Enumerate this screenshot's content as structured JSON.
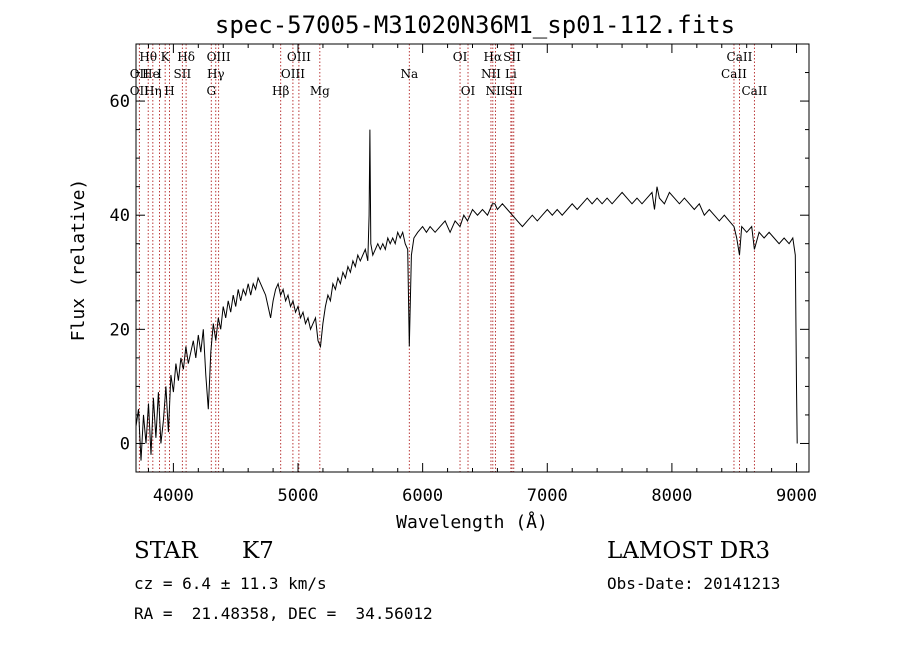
{
  "chart_data": {
    "type": "line",
    "title": "spec-57005-M31020N36M1_sp01-112.fits",
    "xlabel": "Wavelength (Å)",
    "ylabel": "Flux (relative)",
    "xlim": [
      3700,
      9100
    ],
    "ylim": [
      -5,
      70
    ],
    "x_ticks": [
      4000,
      5000,
      6000,
      7000,
      8000,
      9000
    ],
    "y_ticks": [
      0,
      20,
      40,
      60
    ],
    "grid": false,
    "series": [
      {
        "name": "spectrum",
        "points": [
          [
            3700,
            3
          ],
          [
            3720,
            6
          ],
          [
            3740,
            -3
          ],
          [
            3760,
            5
          ],
          [
            3780,
            0
          ],
          [
            3800,
            7
          ],
          [
            3820,
            -2
          ],
          [
            3840,
            8
          ],
          [
            3860,
            1
          ],
          [
            3880,
            9
          ],
          [
            3900,
            0
          ],
          [
            3920,
            4
          ],
          [
            3940,
            10
          ],
          [
            3960,
            2
          ],
          [
            3980,
            12
          ],
          [
            4000,
            9
          ],
          [
            4020,
            14
          ],
          [
            4040,
            11
          ],
          [
            4060,
            15
          ],
          [
            4080,
            13
          ],
          [
            4100,
            17
          ],
          [
            4120,
            14
          ],
          [
            4140,
            16
          ],
          [
            4160,
            18
          ],
          [
            4180,
            15
          ],
          [
            4200,
            19
          ],
          [
            4220,
            16
          ],
          [
            4240,
            20
          ],
          [
            4260,
            12
          ],
          [
            4280,
            6
          ],
          [
            4300,
            16
          ],
          [
            4320,
            21
          ],
          [
            4340,
            18
          ],
          [
            4360,
            22
          ],
          [
            4380,
            20
          ],
          [
            4400,
            24
          ],
          [
            4420,
            22
          ],
          [
            4440,
            25
          ],
          [
            4460,
            23
          ],
          [
            4480,
            26
          ],
          [
            4500,
            24
          ],
          [
            4520,
            27
          ],
          [
            4540,
            25
          ],
          [
            4560,
            27
          ],
          [
            4580,
            26
          ],
          [
            4600,
            28
          ],
          [
            4620,
            26
          ],
          [
            4640,
            28
          ],
          [
            4660,
            27
          ],
          [
            4680,
            29
          ],
          [
            4700,
            28
          ],
          [
            4720,
            27
          ],
          [
            4740,
            26
          ],
          [
            4760,
            24
          ],
          [
            4780,
            22
          ],
          [
            4800,
            25
          ],
          [
            4820,
            27
          ],
          [
            4840,
            28
          ],
          [
            4860,
            26
          ],
          [
            4880,
            27
          ],
          [
            4900,
            25
          ],
          [
            4920,
            26
          ],
          [
            4940,
            24
          ],
          [
            4960,
            25
          ],
          [
            4980,
            23
          ],
          [
            5000,
            24
          ],
          [
            5020,
            22
          ],
          [
            5040,
            23
          ],
          [
            5060,
            21
          ],
          [
            5080,
            22
          ],
          [
            5100,
            20
          ],
          [
            5120,
            21
          ],
          [
            5140,
            22
          ],
          [
            5160,
            18
          ],
          [
            5180,
            17
          ],
          [
            5200,
            21
          ],
          [
            5220,
            24
          ],
          [
            5240,
            26
          ],
          [
            5260,
            25
          ],
          [
            5280,
            28
          ],
          [
            5300,
            27
          ],
          [
            5320,
            29
          ],
          [
            5340,
            28
          ],
          [
            5360,
            30
          ],
          [
            5380,
            29
          ],
          [
            5400,
            31
          ],
          [
            5420,
            30
          ],
          [
            5440,
            32
          ],
          [
            5460,
            31
          ],
          [
            5480,
            33
          ],
          [
            5500,
            32
          ],
          [
            5520,
            33
          ],
          [
            5540,
            34
          ],
          [
            5560,
            32
          ],
          [
            5570,
            40
          ],
          [
            5577,
            55
          ],
          [
            5584,
            35
          ],
          [
            5600,
            33
          ],
          [
            5620,
            34
          ],
          [
            5640,
            35
          ],
          [
            5660,
            34
          ],
          [
            5680,
            35
          ],
          [
            5700,
            34
          ],
          [
            5720,
            36
          ],
          [
            5740,
            35
          ],
          [
            5760,
            36
          ],
          [
            5780,
            35
          ],
          [
            5800,
            37
          ],
          [
            5820,
            36
          ],
          [
            5840,
            37
          ],
          [
            5860,
            35
          ],
          [
            5880,
            34
          ],
          [
            5893,
            17
          ],
          [
            5910,
            33
          ],
          [
            5930,
            36
          ],
          [
            5960,
            37
          ],
          [
            6000,
            38
          ],
          [
            6030,
            37
          ],
          [
            6060,
            38
          ],
          [
            6100,
            37
          ],
          [
            6140,
            38
          ],
          [
            6180,
            39
          ],
          [
            6220,
            37
          ],
          [
            6260,
            39
          ],
          [
            6300,
            38
          ],
          [
            6330,
            40
          ],
          [
            6360,
            39
          ],
          [
            6400,
            41
          ],
          [
            6440,
            40
          ],
          [
            6480,
            41
          ],
          [
            6520,
            40
          ],
          [
            6560,
            42
          ],
          [
            6580,
            42
          ],
          [
            6600,
            41
          ],
          [
            6640,
            42
          ],
          [
            6680,
            41
          ],
          [
            6720,
            40
          ],
          [
            6760,
            39
          ],
          [
            6800,
            38
          ],
          [
            6840,
            39
          ],
          [
            6880,
            40
          ],
          [
            6920,
            39
          ],
          [
            6960,
            40
          ],
          [
            7000,
            41
          ],
          [
            7040,
            40
          ],
          [
            7080,
            41
          ],
          [
            7120,
            40
          ],
          [
            7160,
            41
          ],
          [
            7200,
            42
          ],
          [
            7240,
            41
          ],
          [
            7280,
            42
          ],
          [
            7320,
            43
          ],
          [
            7360,
            42
          ],
          [
            7400,
            43
          ],
          [
            7440,
            42
          ],
          [
            7480,
            43
          ],
          [
            7520,
            42
          ],
          [
            7560,
            43
          ],
          [
            7600,
            44
          ],
          [
            7640,
            43
          ],
          [
            7680,
            42
          ],
          [
            7720,
            43
          ],
          [
            7760,
            42
          ],
          [
            7800,
            43
          ],
          [
            7840,
            44
          ],
          [
            7860,
            41
          ],
          [
            7880,
            45
          ],
          [
            7900,
            43
          ],
          [
            7940,
            42
          ],
          [
            7980,
            44
          ],
          [
            8020,
            43
          ],
          [
            8060,
            42
          ],
          [
            8100,
            43
          ],
          [
            8140,
            42
          ],
          [
            8180,
            41
          ],
          [
            8220,
            42
          ],
          [
            8260,
            40
          ],
          [
            8300,
            41
          ],
          [
            8340,
            40
          ],
          [
            8380,
            39
          ],
          [
            8420,
            40
          ],
          [
            8460,
            39
          ],
          [
            8498,
            38
          ],
          [
            8520,
            36
          ],
          [
            8542,
            33
          ],
          [
            8560,
            38
          ],
          [
            8600,
            37
          ],
          [
            8640,
            38
          ],
          [
            8662,
            34
          ],
          [
            8700,
            37
          ],
          [
            8740,
            36
          ],
          [
            8780,
            37
          ],
          [
            8820,
            36
          ],
          [
            8860,
            35
          ],
          [
            8900,
            36
          ],
          [
            8940,
            35
          ],
          [
            8970,
            36
          ],
          [
            8990,
            33
          ],
          [
            9000,
            10
          ],
          [
            9005,
            0
          ]
        ]
      }
    ],
    "line_annotations": [
      {
        "label": "Hθ",
        "x": 3798,
        "row": 1
      },
      {
        "label": "OII",
        "x": 3727,
        "row": 2
      },
      {
        "label": "OII",
        "x": 3727,
        "row": 3
      },
      {
        "label": "He",
        "x": 3820,
        "row": 2
      },
      {
        "label": "Hη",
        "x": 3835,
        "row": 3
      },
      {
        "label": "K",
        "x": 3934,
        "row": 1
      },
      {
        "label": "SII",
        "x": 4072,
        "row": 2
      },
      {
        "label": "H",
        "x": 3969,
        "row": 3
      },
      {
        "label": "Hδ",
        "x": 4102,
        "row": 1
      },
      {
        "label": "I",
        "x": 3889,
        "row": 2
      },
      {
        "label": "OIII",
        "x": 4363,
        "row": 1
      },
      {
        "label": "Hγ",
        "x": 4340,
        "row": 2
      },
      {
        "label": "G",
        "x": 4304,
        "row": 3
      },
      {
        "label": "OIII",
        "x": 5007,
        "row": 1
      },
      {
        "label": "OIII",
        "x": 4959,
        "row": 2
      },
      {
        "label": "Hβ",
        "x": 4861,
        "row": 3
      },
      {
        "label": "Mg",
        "x": 5175,
        "row": 3
      },
      {
        "label": "Na",
        "x": 5893,
        "row": 2
      },
      {
        "label": "OI",
        "x": 6300,
        "row": 1
      },
      {
        "label": "OI",
        "x": 6364,
        "row": 3
      },
      {
        "label": "Hα",
        "x": 6563,
        "row": 1
      },
      {
        "label": "NII",
        "x": 6548,
        "row": 2
      },
      {
        "label": "NII",
        "x": 6584,
        "row": 3
      },
      {
        "label": "SII",
        "x": 6717,
        "row": 1
      },
      {
        "label": "Li",
        "x": 6708,
        "row": 2
      },
      {
        "label": "SII",
        "x": 6731,
        "row": 3
      },
      {
        "label": "CaII",
        "x": 8542,
        "row": 1
      },
      {
        "label": "CaII",
        "x": 8498,
        "row": 2
      },
      {
        "label": "CaII",
        "x": 8662,
        "row": 3
      }
    ],
    "marker_lines": [
      3727,
      3798,
      3835,
      3889,
      3934,
      3969,
      4072,
      4102,
      4304,
      4340,
      4363,
      4861,
      4959,
      5007,
      5175,
      5893,
      6300,
      6364,
      6548,
      6563,
      6584,
      6708,
      6717,
      6731,
      8498,
      8542,
      8662
    ]
  },
  "info": {
    "object_class": "STAR",
    "subclass": "K7",
    "survey": "LAMOST DR3",
    "cz": "cz = 6.4 ± 11.3 km/s",
    "obs_date": "Obs-Date: 20141213",
    "coords": "RA =  21.48358, DEC =  34.56012"
  },
  "colors": {
    "line": "#000000",
    "marker": "#b22222",
    "background": "#ffffff"
  }
}
